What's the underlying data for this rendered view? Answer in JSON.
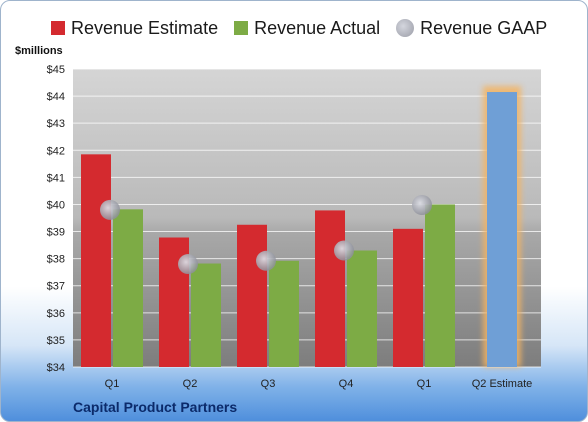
{
  "legend": {
    "estimate": "Revenue Estimate",
    "actual": "Revenue Actual",
    "gaap": "Revenue GAAP"
  },
  "unit_label": "$millions",
  "company": "Capital Product Partners",
  "colors": {
    "estimate": "#d42a2f",
    "actual": "#7dab45",
    "gaap": "#a9abb4",
    "forecast": "#6f9fd6",
    "forecast_glow": "#f3b463"
  },
  "chart_data": {
    "type": "bar",
    "categories": [
      "Q1",
      "Q2",
      "Q3",
      "Q4",
      "Q1",
      "Q2 Estimate"
    ],
    "series": [
      {
        "name": "Revenue Estimate",
        "values": [
          41.85,
          38.78,
          39.25,
          39.78,
          39.1,
          null
        ]
      },
      {
        "name": "Revenue Actual",
        "values": [
          39.82,
          37.82,
          37.92,
          38.3,
          40.0,
          44.15
        ]
      },
      {
        "name": "Revenue GAAP",
        "values": [
          39.8,
          37.8,
          37.92,
          38.3,
          39.98,
          null
        ]
      }
    ],
    "ylabel": "$millions",
    "ylim": [
      34,
      45
    ],
    "yticks": [
      "$34",
      "$35",
      "$36",
      "$37",
      "$38",
      "$39",
      "$40",
      "$41",
      "$42",
      "$43",
      "$44",
      "$45"
    ],
    "grid": true,
    "legend": "top"
  }
}
